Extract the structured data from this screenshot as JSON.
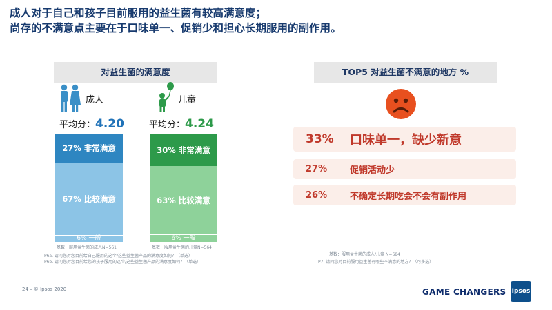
{
  "title": {
    "line1": "成人对于自己和孩子目前服用的益生菌有较高满意度；",
    "line2": "尚存的不满意点主要在于口味单一、促销少和担心长期服用的副作用。"
  },
  "left_panel": {
    "header": "对益生菌的满意度",
    "adult_label": "成人",
    "child_label": "儿童",
    "avg_prefix": "平均分：",
    "adult_avg": "4.20",
    "child_avg": "4.24",
    "base_adult": "基数：服用益生菌的成人N=561",
    "base_child": "基数：服用益生菌的儿童N=564",
    "note1": "P6a. 请问您对您目前给自己服用的这个/这些益生菌产品的满意度如何？（单选）",
    "note2": "P6b. 请问您对您目前给您的孩子服用的这个/这些益生菌产品的满意度如何？（单选）"
  },
  "right_panel": {
    "header": "TOP5 对益生菌不满意的地方 %",
    "face_icon": "sad-face-icon",
    "base": "基数：服用益生菌的成人/儿童 N=684",
    "note": "P7. 请问您对目前服用益生菌有哪些不满意的地方？（可多选）"
  },
  "chart_data": [
    {
      "type": "bar",
      "stacked": true,
      "title": "对益生菌的满意度",
      "categories": [
        "成人",
        "儿童"
      ],
      "series": [
        {
          "name": "非常满意",
          "values": [
            27,
            30
          ]
        },
        {
          "name": "比较满意",
          "values": [
            67,
            63
          ]
        },
        {
          "name": "一般",
          "values": [
            6,
            6
          ]
        }
      ],
      "segment_labels": {
        "成人": [
          "27% 非常满意",
          "67% 比较满意",
          "6% 一般"
        ],
        "儿童": [
          "30% 非常满意",
          "63% 比较满意",
          "6% 一般"
        ]
      },
      "colors": {
        "成人": [
          "#2e86c1",
          "#8cc4e6",
          "#8cc4e6"
        ],
        "儿童": [
          "#2d9a4a",
          "#8ed29a",
          "#8ed29a"
        ]
      }
    },
    {
      "type": "table",
      "title": "TOP5 对益生菌不满意的地方 %",
      "rows": [
        {
          "pct": "33%",
          "value": 33,
          "label": "口味单一，缺少新意"
        },
        {
          "pct": "27%",
          "value": 27,
          "label": "促销活动少"
        },
        {
          "pct": "26%",
          "value": 26,
          "label": "不确定长期吃会不会有副作用"
        }
      ]
    }
  ],
  "footer": {
    "page": "24 –  © Ipsos 2020",
    "tagline": "GAME CHANGERS",
    "logo": "Ipsos"
  },
  "colors": {
    "title": "#173a6e",
    "adult_dark": "#2e86c1",
    "adult_light": "#8cc4e6",
    "child_dark": "#2d9a4a",
    "child_light": "#8ed29a",
    "face": "#e8501f",
    "row_bg": "#fbeee9",
    "row_text": "#c0392b"
  }
}
